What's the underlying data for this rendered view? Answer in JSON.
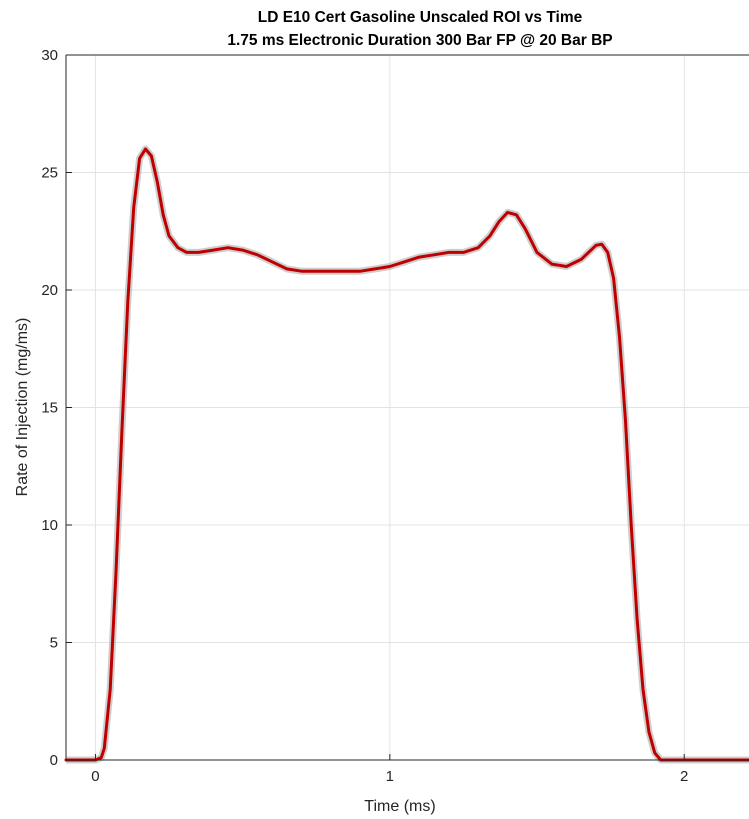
{
  "chart_data": {
    "type": "line",
    "title": [
      "LD E10 Cert Gasoline Unscaled ROI vs Time",
      "1.75 ms Electronic Duration 300 Bar FP @ 20 Bar BP"
    ],
    "xlabel": "Time (ms)",
    "ylabel": "Rate of Injection (mg/ms)",
    "xlim": [
      -0.1,
      2.22
    ],
    "ylim": [
      0,
      30
    ],
    "xticks": [
      0,
      1,
      2
    ],
    "xtick_labels": [
      "0",
      "1",
      "2"
    ],
    "yticks": [
      0,
      5,
      10,
      15,
      20,
      25,
      30
    ],
    "ytick_labels": [
      "0",
      "5",
      "10",
      "15",
      "20",
      "25",
      "30"
    ],
    "grid": true,
    "legend": "none",
    "series": [
      {
        "color": "#c00000",
        "x": [
          -0.1,
          0.0,
          0.02,
          0.03,
          0.05,
          0.07,
          0.09,
          0.11,
          0.13,
          0.15,
          0.17,
          0.19,
          0.21,
          0.23,
          0.25,
          0.28,
          0.31,
          0.35,
          0.4,
          0.45,
          0.5,
          0.55,
          0.6,
          0.65,
          0.7,
          0.75,
          0.8,
          0.85,
          0.9,
          0.95,
          1.0,
          1.05,
          1.1,
          1.15,
          1.2,
          1.25,
          1.3,
          1.34,
          1.37,
          1.4,
          1.43,
          1.46,
          1.5,
          1.55,
          1.6,
          1.65,
          1.7,
          1.72,
          1.74,
          1.76,
          1.78,
          1.8,
          1.82,
          1.84,
          1.86,
          1.88,
          1.9,
          1.92,
          1.95,
          2.0,
          2.22
        ],
        "y": [
          0.0,
          0.0,
          0.1,
          0.5,
          3.0,
          8.0,
          14.0,
          19.5,
          23.5,
          25.6,
          26.0,
          25.7,
          24.6,
          23.2,
          22.3,
          21.8,
          21.6,
          21.6,
          21.7,
          21.8,
          21.7,
          21.5,
          21.2,
          20.9,
          20.8,
          20.8,
          20.8,
          20.8,
          20.8,
          20.9,
          21.0,
          21.2,
          21.4,
          21.5,
          21.6,
          21.6,
          21.8,
          22.3,
          22.9,
          23.3,
          23.2,
          22.6,
          21.6,
          21.1,
          21.0,
          21.3,
          21.9,
          21.95,
          21.6,
          20.5,
          18.0,
          14.5,
          10.0,
          6.0,
          3.0,
          1.2,
          0.3,
          0.0,
          0.0,
          0.0,
          0.0
        ]
      }
    ]
  }
}
